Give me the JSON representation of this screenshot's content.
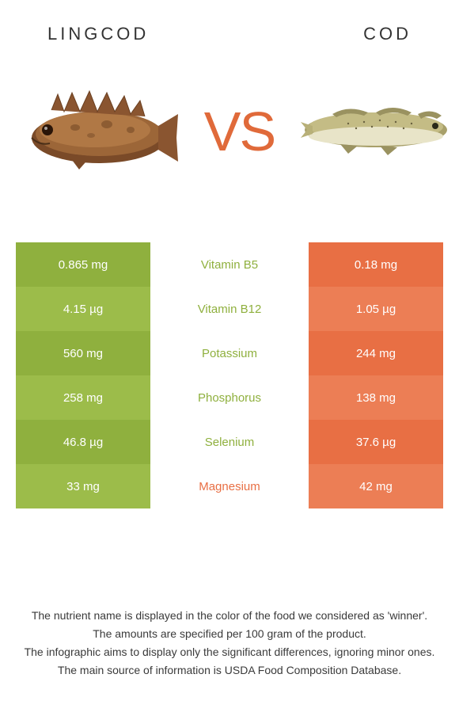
{
  "header": {
    "left_title": "LINGCOD",
    "right_title": "COD"
  },
  "vs_label": "VS",
  "colors": {
    "left_bg": "#8fb03e",
    "right_bg": "#e86f44",
    "left_alt_bg": "#9cbc4a",
    "right_alt_bg": "#ec7e55",
    "left_text": "#8fb03e",
    "right_text": "#e86f44",
    "vs": "#e06a3a"
  },
  "rows": [
    {
      "left": "0.865 mg",
      "mid": "Vitamin B5",
      "right": "0.18 mg",
      "winner": "left"
    },
    {
      "left": "4.15 µg",
      "mid": "Vitamin B12",
      "right": "1.05 µg",
      "winner": "left"
    },
    {
      "left": "560 mg",
      "mid": "Potassium",
      "right": "244 mg",
      "winner": "left"
    },
    {
      "left": "258 mg",
      "mid": "Phosphorus",
      "right": "138 mg",
      "winner": "left"
    },
    {
      "left": "46.8 µg",
      "mid": "Selenium",
      "right": "37.6 µg",
      "winner": "left"
    },
    {
      "left": "33 mg",
      "mid": "Magnesium",
      "right": "42 mg",
      "winner": "right"
    }
  ],
  "footer": {
    "line1": "The nutrient name is displayed in the color of the food we considered as 'winner'.",
    "line2": "The amounts are specified per 100 gram of the product.",
    "line3": "The infographic aims to display only the significant differences, ignoring minor ones.",
    "line4": "The main source of information is USDA Food Composition Database."
  }
}
